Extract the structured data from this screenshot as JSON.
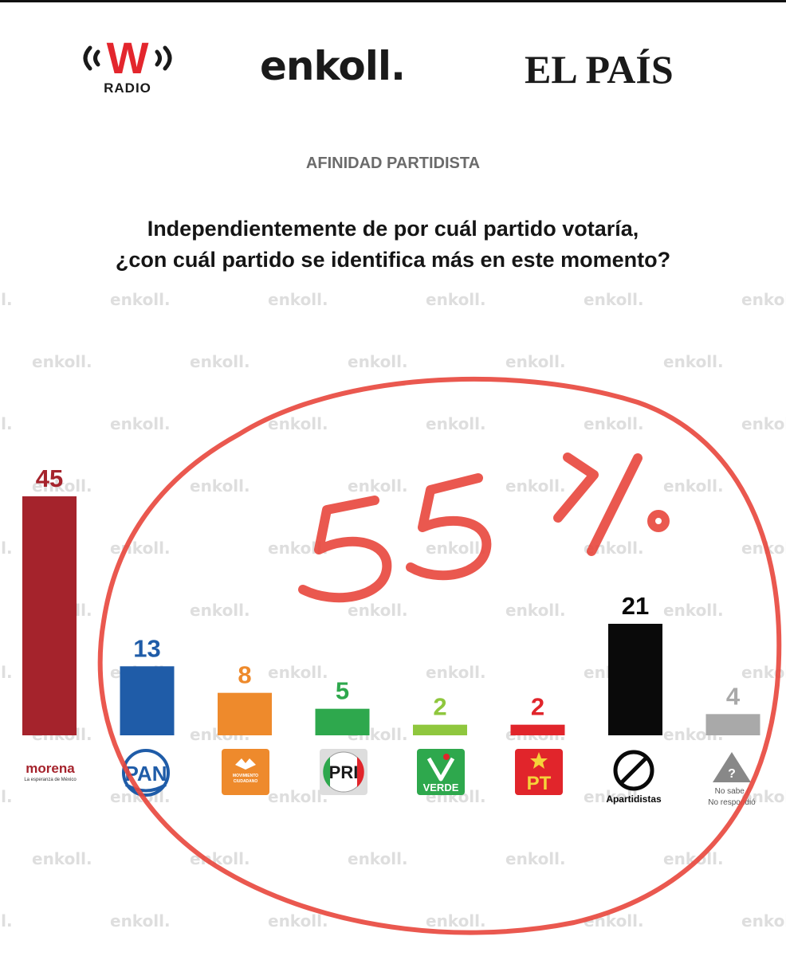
{
  "header": {
    "logos": [
      "W RADIO",
      "enkoll.",
      "EL PAÍS"
    ],
    "w_letter": "W",
    "radio_label": "RADIO",
    "enkoll_label": "enkoll.",
    "elpais_label": "EL PAÍS"
  },
  "kicker": "AFINIDAD PARTIDISTA",
  "question": {
    "line1": "Independientemente de por cuál partido votaría,",
    "line2": "¿con cuál partido se identifica más en este momento?"
  },
  "watermark": "enkoll.",
  "annotation": {
    "text": "55%",
    "color": "#e8463c",
    "shape": "hand-drawn ellipse"
  },
  "chart_data": {
    "type": "bar",
    "title": "",
    "xlabel": "",
    "ylabel": "",
    "grid": false,
    "categories": [
      "morena",
      "PAN",
      "Movimiento Ciudadano",
      "PRI",
      "VERDE",
      "PT",
      "Apartidistas",
      "No sabe / No respondió"
    ],
    "values": [
      45,
      13,
      8,
      5,
      2,
      2,
      21,
      4
    ],
    "colors": [
      "#a5232c",
      "#1f5ca8",
      "#ee8a2c",
      "#2ea84d",
      "#8fc73e",
      "#e1252b",
      "#0a0a0a",
      "#a9a9a9"
    ]
  },
  "party_labels": {
    "morena": {
      "name": "morena",
      "tagline": "La esperanza de México"
    },
    "pan": "PAN",
    "mc": {
      "line1": "MOVIMIENTO",
      "line2": "CIUDADANO"
    },
    "pri": "PRI",
    "verde": "VERDE",
    "pt": "PT",
    "apartidistas": "Apartidistas",
    "no_sabe": {
      "line1": "No sabe /",
      "line2": "No respondió"
    }
  }
}
